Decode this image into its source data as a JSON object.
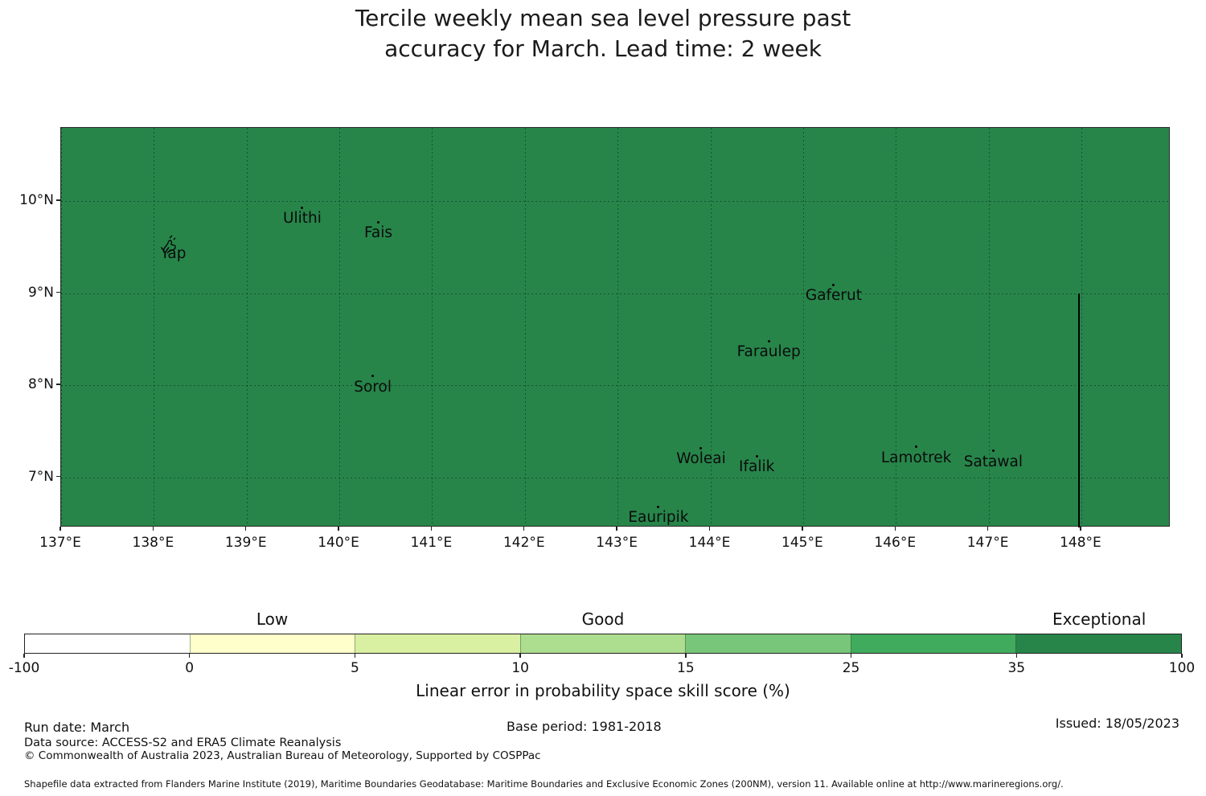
{
  "title": {
    "line1": "Tercile weekly mean sea level pressure past",
    "line2": "accuracy for March. Lead time: 2 week"
  },
  "chart_data": {
    "type": "map",
    "description": "Choropleth skill map, entire shown ocean region filled with one color corresponding to the 35-100 skill bin",
    "region_fill_color": "#27854a",
    "grid": true,
    "x_ticks": [
      {
        "label": "137°E",
        "lon": 137
      },
      {
        "label": "138°E",
        "lon": 138
      },
      {
        "label": "139°E",
        "lon": 139
      },
      {
        "label": "140°E",
        "lon": 140
      },
      {
        "label": "141°E",
        "lon": 141
      },
      {
        "label": "142°E",
        "lon": 142
      },
      {
        "label": "143°E",
        "lon": 143
      },
      {
        "label": "144°E",
        "lon": 144
      },
      {
        "label": "145°E",
        "lon": 145
      },
      {
        "label": "146°E",
        "lon": 146
      },
      {
        "label": "147°E",
        "lon": 147
      },
      {
        "label": "148°E",
        "lon": 148
      }
    ],
    "y_ticks": [
      {
        "label": "10°N",
        "lat": 10
      },
      {
        "label": "9°N",
        "lat": 9
      },
      {
        "label": "8°N",
        "lat": 8
      },
      {
        "label": "7°N",
        "lat": 7
      }
    ],
    "lon_range": [
      137.0,
      148.96
    ],
    "lat_range": [
      6.46,
      10.79
    ],
    "islands": [
      {
        "name": "Yap",
        "lon": 138.21,
        "lat": 9.55,
        "marker": "islet-outline"
      },
      {
        "name": "Ulithi",
        "lon": 139.6,
        "lat": 9.93,
        "marker": "dot"
      },
      {
        "name": "Fais",
        "lon": 140.42,
        "lat": 9.77,
        "marker": "dot"
      },
      {
        "name": "Sorol",
        "lon": 140.36,
        "lat": 8.1,
        "marker": "dot"
      },
      {
        "name": "Gaferut",
        "lon": 145.33,
        "lat": 9.09,
        "marker": "dot"
      },
      {
        "name": "Faraulep",
        "lon": 144.63,
        "lat": 8.48,
        "marker": "dot"
      },
      {
        "name": "Woleai",
        "lon": 143.9,
        "lat": 7.32,
        "marker": "dot"
      },
      {
        "name": "Ifalik",
        "lon": 144.5,
        "lat": 7.23,
        "marker": "dot"
      },
      {
        "name": "Lamotrek",
        "lon": 146.22,
        "lat": 7.33,
        "marker": "dot"
      },
      {
        "name": "Satawal",
        "lon": 147.05,
        "lat": 7.29,
        "marker": "dot"
      },
      {
        "name": "Eauripik",
        "lon": 143.44,
        "lat": 6.68,
        "marker": "dot"
      }
    ],
    "boundary_line": {
      "lon": 147.97,
      "lat_from": 9.0,
      "lat_to": 6.46
    },
    "colorbar": {
      "title": "Linear error in probability space skill score (%)",
      "boundaries": [
        "-100",
        "0",
        "5",
        "10",
        "15",
        "25",
        "35",
        "100"
      ],
      "segment_colors": [
        "#ffffff",
        "#ffffcc",
        "#d9f0a3",
        "#addd8e",
        "#78c679",
        "#41ab5d",
        "#27854a"
      ],
      "zone_labels": [
        {
          "label": "Low",
          "segment_index": 1
        },
        {
          "label": "Good",
          "segment_index": 3
        },
        {
          "label": "Exceptional",
          "segment_index": 6
        }
      ]
    }
  },
  "footer": {
    "run_date": "Run date: March",
    "base_period": "Base period: 1981-2018",
    "issued": "Issued: 18/05/2023",
    "data_source": "Data source: ACCESS-S2 and ERA5 Climate Reanalysis",
    "copyright": "© Commonwealth of Australia 2023, Australian Bureau of Meteorology, Supported by COSPPac",
    "shapefile_note": "Shapefile data extracted from Flanders Marine Institute (2019), Maritime Boundaries Geodatabase: Maritime Boundaries and Exclusive Economic Zones (200NM), version 11. Available online at http://www.marineregions.org/."
  }
}
